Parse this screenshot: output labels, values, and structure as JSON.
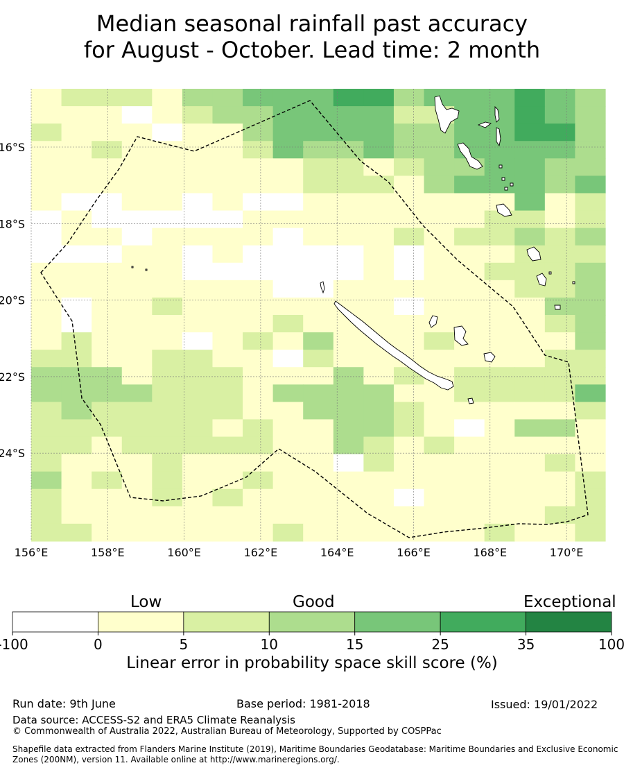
{
  "title": {
    "line1": "Median seasonal rainfall past accuracy",
    "line2": "for August - October. Lead time: 2 month"
  },
  "map": {
    "lon_ticks": [
      "156°E",
      "158°E",
      "160°E",
      "162°E",
      "164°E",
      "166°E",
      "168°E",
      "170°E"
    ],
    "lat_ticks": [
      "16°S",
      "18°S",
      "20°S",
      "22°S",
      "24°S"
    ],
    "lon_range": [
      156,
      171
    ],
    "lat_range": [
      -14.3,
      -26.1
    ],
    "boundary_style": "dashed",
    "gridlines": true
  },
  "colorbar": {
    "categories": {
      "low": "Low",
      "good": "Good",
      "exceptional": "Exceptional"
    },
    "ticks": [
      "-100",
      "0",
      "5",
      "10",
      "15",
      "25",
      "35",
      "100"
    ],
    "colors": [
      "#ffffff",
      "#ffffcc",
      "#d9f0a3",
      "#addd8e",
      "#78c679",
      "#41ab5d",
      "#238443"
    ],
    "label": "Linear error in probability space skill score (%)"
  },
  "footer": {
    "run_date": "Run date: 9th June",
    "base_period": "Base period: 1981-2018",
    "issued": "Issued: 19/01/2022",
    "data_source": "Data source: ACCESS-S2 and ERA5 Climate Reanalysis",
    "copyright": "© Commonwealth of Australia 2022, Australian Bureau of Meteorology, Supported by COSPPac",
    "shapefile_line1": "Shapefile data extracted from Flanders Marine Institute (2019), Maritime Boundaries Geodatabase: Maritime Boundaries and Exclusive Economic",
    "shapefile_line2": "Zones (200NM), version 11. Available online at http://www.marineregions.org/."
  }
}
